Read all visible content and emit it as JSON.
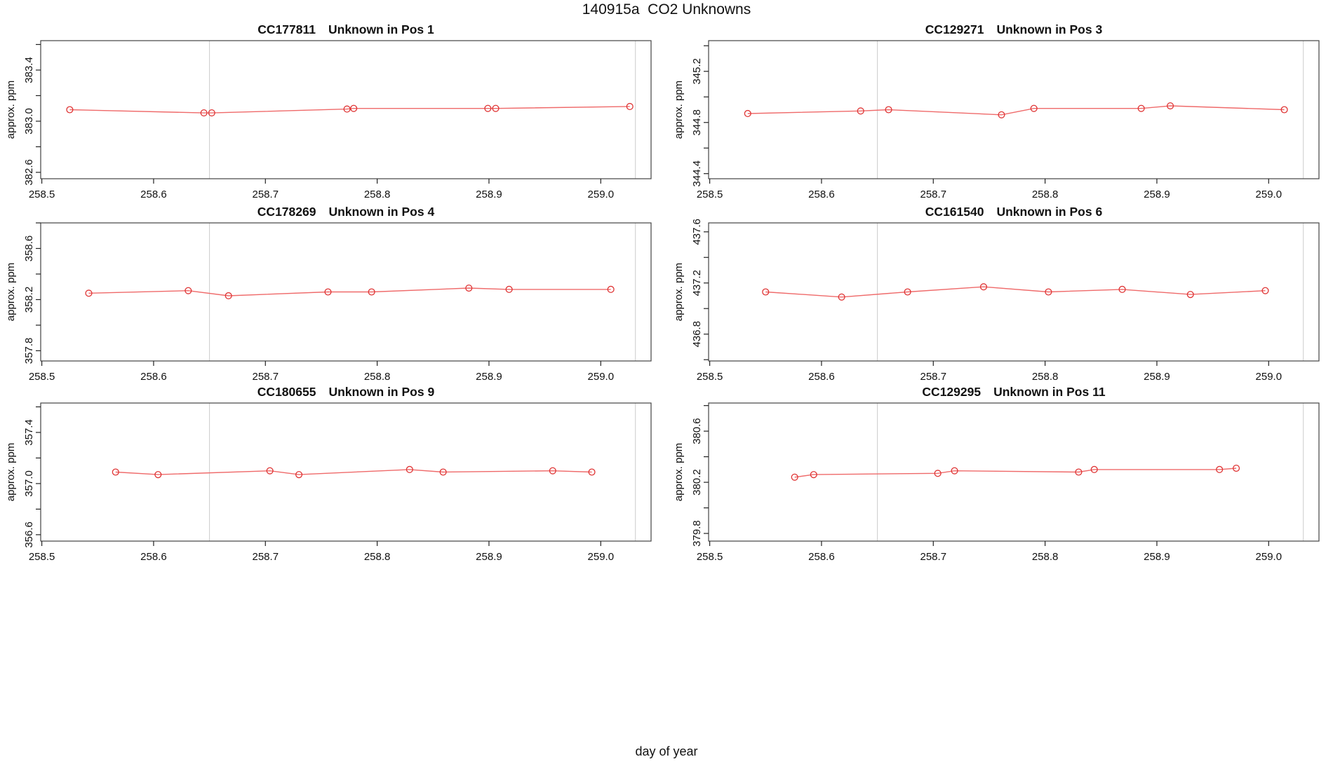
{
  "title": "140915a  CO2 Unknowns",
  "xlabel": "day of year",
  "colors": {
    "series_marker": "#df3434",
    "series_line": "#ef6a6a",
    "gridline": "#cccccc",
    "panel_border": "#444444",
    "axis": "#222222",
    "text": "#111111",
    "background": "#ffffff"
  },
  "axis": {
    "ylabel": "approx. ppm",
    "xlim": [
      258.499,
      259.045
    ],
    "xticks": [
      258.5,
      258.6,
      258.7,
      258.8,
      258.9,
      259.0
    ],
    "vlines": [
      258.65,
      259.031
    ],
    "grid": "vertical-reference-lines-only"
  },
  "chart_data": [
    {
      "type": "line",
      "code": "CC177811",
      "position_label": "Unknown in Pos 1",
      "title": "CC177811    Unknown in Pos 1",
      "ylabel": "approx. ppm",
      "ylim": [
        382.55,
        383.63
      ],
      "yticks_labeled": [
        382.6,
        383.0,
        383.4
      ],
      "x": [
        258.525,
        258.645,
        258.652,
        258.773,
        258.779,
        258.899,
        258.906,
        259.026
      ],
      "y": [
        383.09,
        383.065,
        383.065,
        383.095,
        383.1,
        383.1,
        383.1,
        383.115
      ]
    },
    {
      "type": "line",
      "code": "CC129271",
      "position_label": "Unknown in Pos 3",
      "title": "CC129271    Unknown in Pos 3",
      "ylabel": "approx. ppm",
      "ylim": [
        344.36,
        345.44
      ],
      "yticks_labeled": [
        344.4,
        344.8,
        345.2
      ],
      "x": [
        258.534,
        258.635,
        258.66,
        258.761,
        258.79,
        258.886,
        258.912,
        259.014
      ],
      "y": [
        344.87,
        344.89,
        344.9,
        344.86,
        344.91,
        344.91,
        344.93,
        344.9
      ]
    },
    {
      "type": "line",
      "code": "CC178269",
      "position_label": "Unknown in Pos 4",
      "title": "CC178269    Unknown in Pos 4",
      "ylabel": "approx. ppm",
      "ylim": [
        357.72,
        358.8
      ],
      "yticks_labeled": [
        357.8,
        358.2,
        358.6
      ],
      "x": [
        258.542,
        258.631,
        258.667,
        258.756,
        258.795,
        258.882,
        258.918,
        259.009
      ],
      "y": [
        358.25,
        358.27,
        358.23,
        358.26,
        358.26,
        358.29,
        358.28,
        358.28
      ]
    },
    {
      "type": "line",
      "code": "CC161540",
      "position_label": "Unknown in Pos 6",
      "title": "CC161540    Unknown in Pos 6",
      "ylabel": "approx. ppm",
      "ylim": [
        436.59,
        437.67
      ],
      "yticks_labeled": [
        436.8,
        437.2,
        437.6
      ],
      "x": [
        258.55,
        258.618,
        258.677,
        258.745,
        258.803,
        258.869,
        258.93,
        258.997
      ],
      "y": [
        437.13,
        437.09,
        437.13,
        437.17,
        437.13,
        437.15,
        437.11,
        437.14
      ]
    },
    {
      "type": "line",
      "code": "CC180655",
      "position_label": "Unknown in Pos 9",
      "title": "CC180655    Unknown in Pos 9",
      "ylabel": "approx. ppm",
      "ylim": [
        356.55,
        357.63
      ],
      "yticks_labeled": [
        356.6,
        357.0,
        357.4
      ],
      "x": [
        258.566,
        258.604,
        258.704,
        258.73,
        258.829,
        258.859,
        258.957,
        258.992
      ],
      "y": [
        357.09,
        357.07,
        357.1,
        357.07,
        357.11,
        357.09,
        357.1,
        357.09
      ]
    },
    {
      "type": "line",
      "code": "CC129295",
      "position_label": "Unknown in Pos 11",
      "title": "CC129295    Unknown in Pos 11",
      "ylabel": "approx. ppm",
      "ylim": [
        379.74,
        380.82
      ],
      "yticks_labeled": [
        379.8,
        380.2,
        380.6
      ],
      "x": [
        258.576,
        258.593,
        258.704,
        258.719,
        258.83,
        258.844,
        258.956,
        258.971
      ],
      "y": [
        380.24,
        380.26,
        380.27,
        380.29,
        380.28,
        380.3,
        380.3,
        380.31
      ]
    }
  ]
}
